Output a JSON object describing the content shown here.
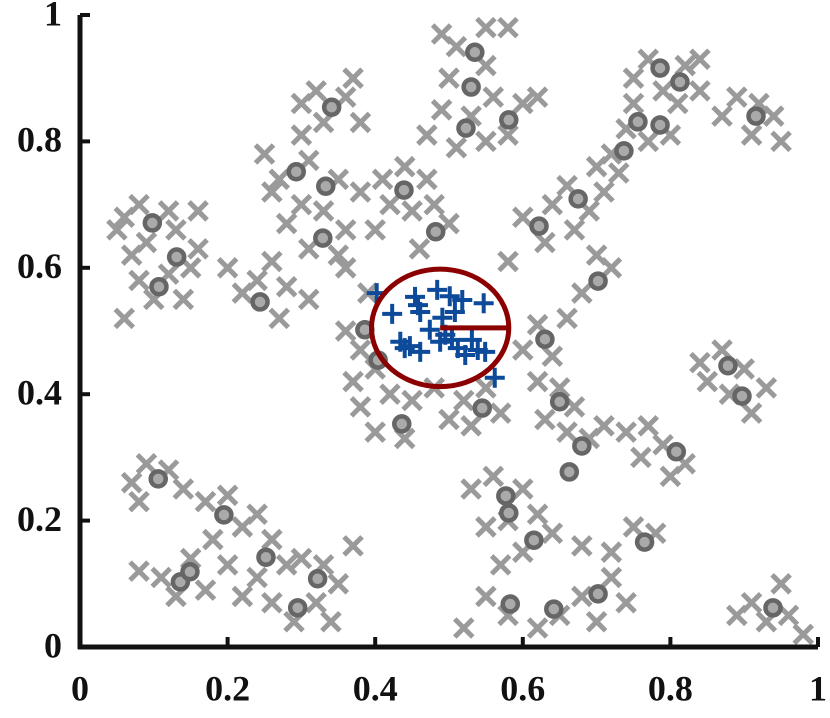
{
  "chart_data": {
    "type": "scatter",
    "xlim": [
      0,
      1
    ],
    "ylim": [
      0,
      1
    ],
    "xticks": [
      0,
      0.2,
      0.4,
      0.6,
      0.8,
      1
    ],
    "yticks": [
      0,
      0.2,
      0.4,
      0.6,
      0.8,
      1
    ],
    "series": [
      {
        "marker": "x",
        "color": "#9a9a9a",
        "x": [
          0.06,
          0.08,
          0.12,
          0.13,
          0.09,
          0.07,
          0.16,
          0.05,
          0.12,
          0.15,
          0.1,
          0.14,
          0.08,
          0.16,
          0.06,
          0.2,
          0.22,
          0.27,
          0.28,
          0.24,
          0.31,
          0.26,
          0.25,
          0.27,
          0.31,
          0.35,
          0.3,
          0.33,
          0.28,
          0.36,
          0.31,
          0.35,
          0.26,
          0.3,
          0.32,
          0.36,
          0.38,
          0.33,
          0.3,
          0.37,
          0.41,
          0.44,
          0.47,
          0.42,
          0.45,
          0.38,
          0.48,
          0.5,
          0.46,
          0.4,
          0.36,
          0.39,
          0.49,
          0.51,
          0.55,
          0.58,
          0.55,
          0.5,
          0.56,
          0.49,
          0.53,
          0.55,
          0.58,
          0.6,
          0.62,
          0.51,
          0.47,
          0.6,
          0.64,
          0.66,
          0.69,
          0.67,
          0.63,
          0.7,
          0.72,
          0.68,
          0.66,
          0.62,
          0.64,
          0.6,
          0.58,
          0.71,
          0.72,
          0.74,
          0.77,
          0.75,
          0.79,
          0.77,
          0.82,
          0.84,
          0.81,
          0.8,
          0.73,
          0.7,
          0.84,
          0.89,
          0.92,
          0.94,
          0.91,
          0.95,
          0.87,
          0.75,
          0.36,
          0.38,
          0.4,
          0.37,
          0.42,
          0.45,
          0.48,
          0.52,
          0.55,
          0.5,
          0.44,
          0.4,
          0.38,
          0.53,
          0.57,
          0.62,
          0.65,
          0.67,
          0.63,
          0.66,
          0.69,
          0.71,
          0.74,
          0.77,
          0.79,
          0.82,
          0.8,
          0.76,
          0.85,
          0.87,
          0.9,
          0.93,
          0.91,
          0.88,
          0.84,
          0.53,
          0.56,
          0.6,
          0.58,
          0.55,
          0.62,
          0.64,
          0.6,
          0.57,
          0.68,
          0.72,
          0.75,
          0.78,
          0.72,
          0.68,
          0.65,
          0.62,
          0.58,
          0.55,
          0.52,
          0.7,
          0.74,
          0.91,
          0.93,
          0.96,
          0.98,
          0.95,
          0.89,
          0.07,
          0.09,
          0.12,
          0.14,
          0.08,
          0.17,
          0.2,
          0.22,
          0.18,
          0.24,
          0.26,
          0.28,
          0.24,
          0.2,
          0.15,
          0.11,
          0.08,
          0.13,
          0.17,
          0.3,
          0.33,
          0.35,
          0.32,
          0.29,
          0.26,
          0.34,
          0.37,
          0.22
        ],
        "y": [
          0.68,
          0.7,
          0.69,
          0.66,
          0.64,
          0.62,
          0.69,
          0.66,
          0.59,
          0.6,
          0.55,
          0.55,
          0.58,
          0.63,
          0.52,
          0.6,
          0.56,
          0.52,
          0.57,
          0.58,
          0.55,
          0.61,
          0.78,
          0.74,
          0.77,
          0.74,
          0.7,
          0.69,
          0.67,
          0.66,
          0.63,
          0.62,
          0.72,
          0.81,
          0.88,
          0.87,
          0.83,
          0.83,
          0.86,
          0.9,
          0.74,
          0.76,
          0.74,
          0.7,
          0.69,
          0.72,
          0.7,
          0.67,
          0.63,
          0.66,
          0.6,
          0.56,
          0.97,
          0.95,
          0.98,
          0.98,
          0.92,
          0.9,
          0.87,
          0.85,
          0.84,
          0.8,
          0.81,
          0.86,
          0.87,
          0.79,
          0.81,
          0.68,
          0.7,
          0.73,
          0.69,
          0.66,
          0.64,
          0.62,
          0.6,
          0.56,
          0.52,
          0.51,
          0.46,
          0.47,
          0.61,
          0.72,
          0.78,
          0.82,
          0.8,
          0.86,
          0.88,
          0.93,
          0.92,
          0.93,
          0.86,
          0.81,
          0.75,
          0.76,
          0.88,
          0.87,
          0.86,
          0.84,
          0.81,
          0.8,
          0.84,
          0.9,
          0.5,
          0.47,
          0.44,
          0.42,
          0.4,
          0.39,
          0.41,
          0.39,
          0.41,
          0.36,
          0.33,
          0.34,
          0.38,
          0.35,
          0.37,
          0.42,
          0.41,
          0.38,
          0.36,
          0.34,
          0.33,
          0.35,
          0.34,
          0.35,
          0.32,
          0.29,
          0.27,
          0.3,
          0.42,
          0.47,
          0.44,
          0.41,
          0.37,
          0.4,
          0.45,
          0.25,
          0.27,
          0.25,
          0.2,
          0.19,
          0.21,
          0.18,
          0.15,
          0.13,
          0.16,
          0.15,
          0.19,
          0.18,
          0.11,
          0.08,
          0.05,
          0.03,
          0.05,
          0.08,
          0.03,
          0.04,
          0.07,
          0.07,
          0.04,
          0.05,
          0.02,
          0.1,
          0.05,
          0.26,
          0.29,
          0.28,
          0.25,
          0.23,
          0.23,
          0.24,
          0.19,
          0.17,
          0.21,
          0.17,
          0.13,
          0.11,
          0.13,
          0.14,
          0.11,
          0.12,
          0.08,
          0.09,
          0.14,
          0.13,
          0.1,
          0.07,
          0.04,
          0.07,
          0.04,
          0.16,
          0.08
        ]
      },
      {
        "marker": "o",
        "color": "#666666",
        "x": [
          0.098,
          0.131,
          0.107,
          0.244,
          0.293,
          0.333,
          0.341,
          0.329,
          0.439,
          0.482,
          0.535,
          0.53,
          0.523,
          0.581,
          0.622,
          0.675,
          0.702,
          0.63,
          0.737,
          0.756,
          0.786,
          0.786,
          0.813,
          0.916,
          0.386,
          0.404,
          0.436,
          0.545,
          0.65,
          0.68,
          0.663,
          0.808,
          0.878,
          0.897,
          0.577,
          0.581,
          0.615,
          0.765,
          0.583,
          0.642,
          0.702,
          0.939,
          0.106,
          0.195,
          0.252,
          0.136,
          0.149,
          0.322,
          0.295
        ],
        "y": [
          0.671,
          0.617,
          0.57,
          0.546,
          0.752,
          0.729,
          0.854,
          0.647,
          0.723,
          0.657,
          0.941,
          0.886,
          0.821,
          0.834,
          0.666,
          0.709,
          0.579,
          0.487,
          0.785,
          0.831,
          0.826,
          0.916,
          0.894,
          0.84,
          0.502,
          0.454,
          0.353,
          0.378,
          0.388,
          0.318,
          0.277,
          0.309,
          0.445,
          0.397,
          0.239,
          0.212,
          0.169,
          0.166,
          0.068,
          0.06,
          0.084,
          0.062,
          0.266,
          0.209,
          0.142,
          0.103,
          0.119,
          0.108,
          0.062
        ]
      },
      {
        "marker": "+",
        "color": "#0d4a9a",
        "x": [
          0.402,
          0.423,
          0.454,
          0.458,
          0.461,
          0.484,
          0.501,
          0.518,
          0.547,
          0.508,
          0.491,
          0.434,
          0.44,
          0.461,
          0.447,
          0.488,
          0.504,
          0.512,
          0.522,
          0.531,
          0.539,
          0.549,
          0.562,
          0.474,
          0.495
        ],
        "y": [
          0.56,
          0.527,
          0.554,
          0.541,
          0.53,
          0.565,
          0.555,
          0.549,
          0.544,
          0.53,
          0.521,
          0.483,
          0.473,
          0.467,
          0.476,
          0.483,
          0.486,
          0.473,
          0.462,
          0.486,
          0.47,
          0.467,
          0.426,
          0.502,
          0.494
        ]
      }
    ],
    "circle": {
      "center": [
        0.488,
        0.505
      ],
      "radius": 0.093,
      "color": "#8b0000"
    }
  }
}
